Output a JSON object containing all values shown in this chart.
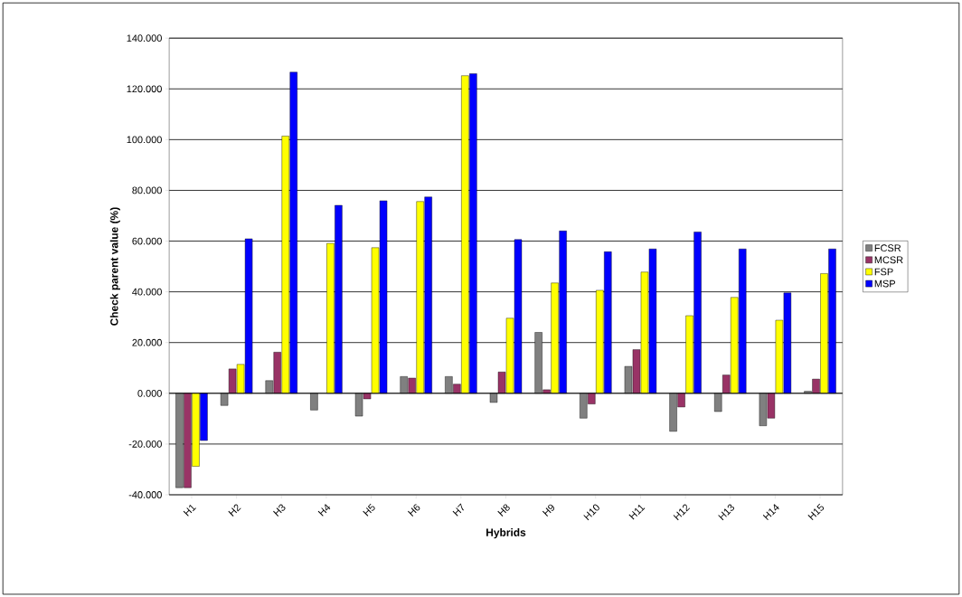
{
  "chart_data": {
    "type": "bar",
    "xlabel": "Hybrids",
    "ylabel": "Check parent value (%)",
    "categories": [
      "H1",
      "H2",
      "H3",
      "H4",
      "H5",
      "H6",
      "H7",
      "H8",
      "H9",
      "H10",
      "H11",
      "H12",
      "H13",
      "H14",
      "H15"
    ],
    "series": [
      {
        "name": "FCSR",
        "color": "#808080",
        "values": [
          -37.2,
          -4.8,
          5.0,
          -6.6,
          -9.0,
          6.6,
          6.6,
          -3.6,
          24.0,
          -9.8,
          10.6,
          -15.0,
          -7.2,
          -12.8,
          0.8
        ]
      },
      {
        "name": "MCSR",
        "color": "#993366",
        "values": [
          -37.2,
          9.6,
          16.2,
          null,
          -2.2,
          6.0,
          3.6,
          8.4,
          1.4,
          -4.2,
          17.2,
          -5.4,
          7.2,
          -9.8,
          5.6
        ]
      },
      {
        "name": "FSP",
        "color": "#ffff00",
        "values": [
          -28.8,
          11.4,
          101.4,
          59.1,
          57.4,
          75.6,
          125.2,
          29.6,
          43.5,
          40.6,
          47.8,
          30.6,
          37.8,
          28.8,
          47.2
        ]
      },
      {
        "name": "MSP",
        "color": "#0000ff",
        "values": [
          -18.6,
          60.9,
          126.6,
          74.1,
          75.9,
          77.4,
          126.0,
          60.6,
          64.0,
          55.8,
          56.9,
          63.6,
          56.9,
          39.6,
          56.9
        ]
      }
    ],
    "ylim": [
      -40,
      140
    ],
    "yticks": [
      {
        "value": -40,
        "label": "-40.000"
      },
      {
        "value": -20,
        "label": "-20.000"
      },
      {
        "value": 0,
        "label": "0.000"
      },
      {
        "value": 20,
        "label": "20.000"
      },
      {
        "value": 40,
        "label": "40.000"
      },
      {
        "value": 60,
        "label": "60.000"
      },
      {
        "value": 80,
        "label": "80.000"
      },
      {
        "value": 100,
        "label": "100.000"
      },
      {
        "value": 120,
        "label": "120.000"
      },
      {
        "value": 140,
        "label": "140.000"
      }
    ],
    "grid": "y",
    "legend": "right"
  }
}
